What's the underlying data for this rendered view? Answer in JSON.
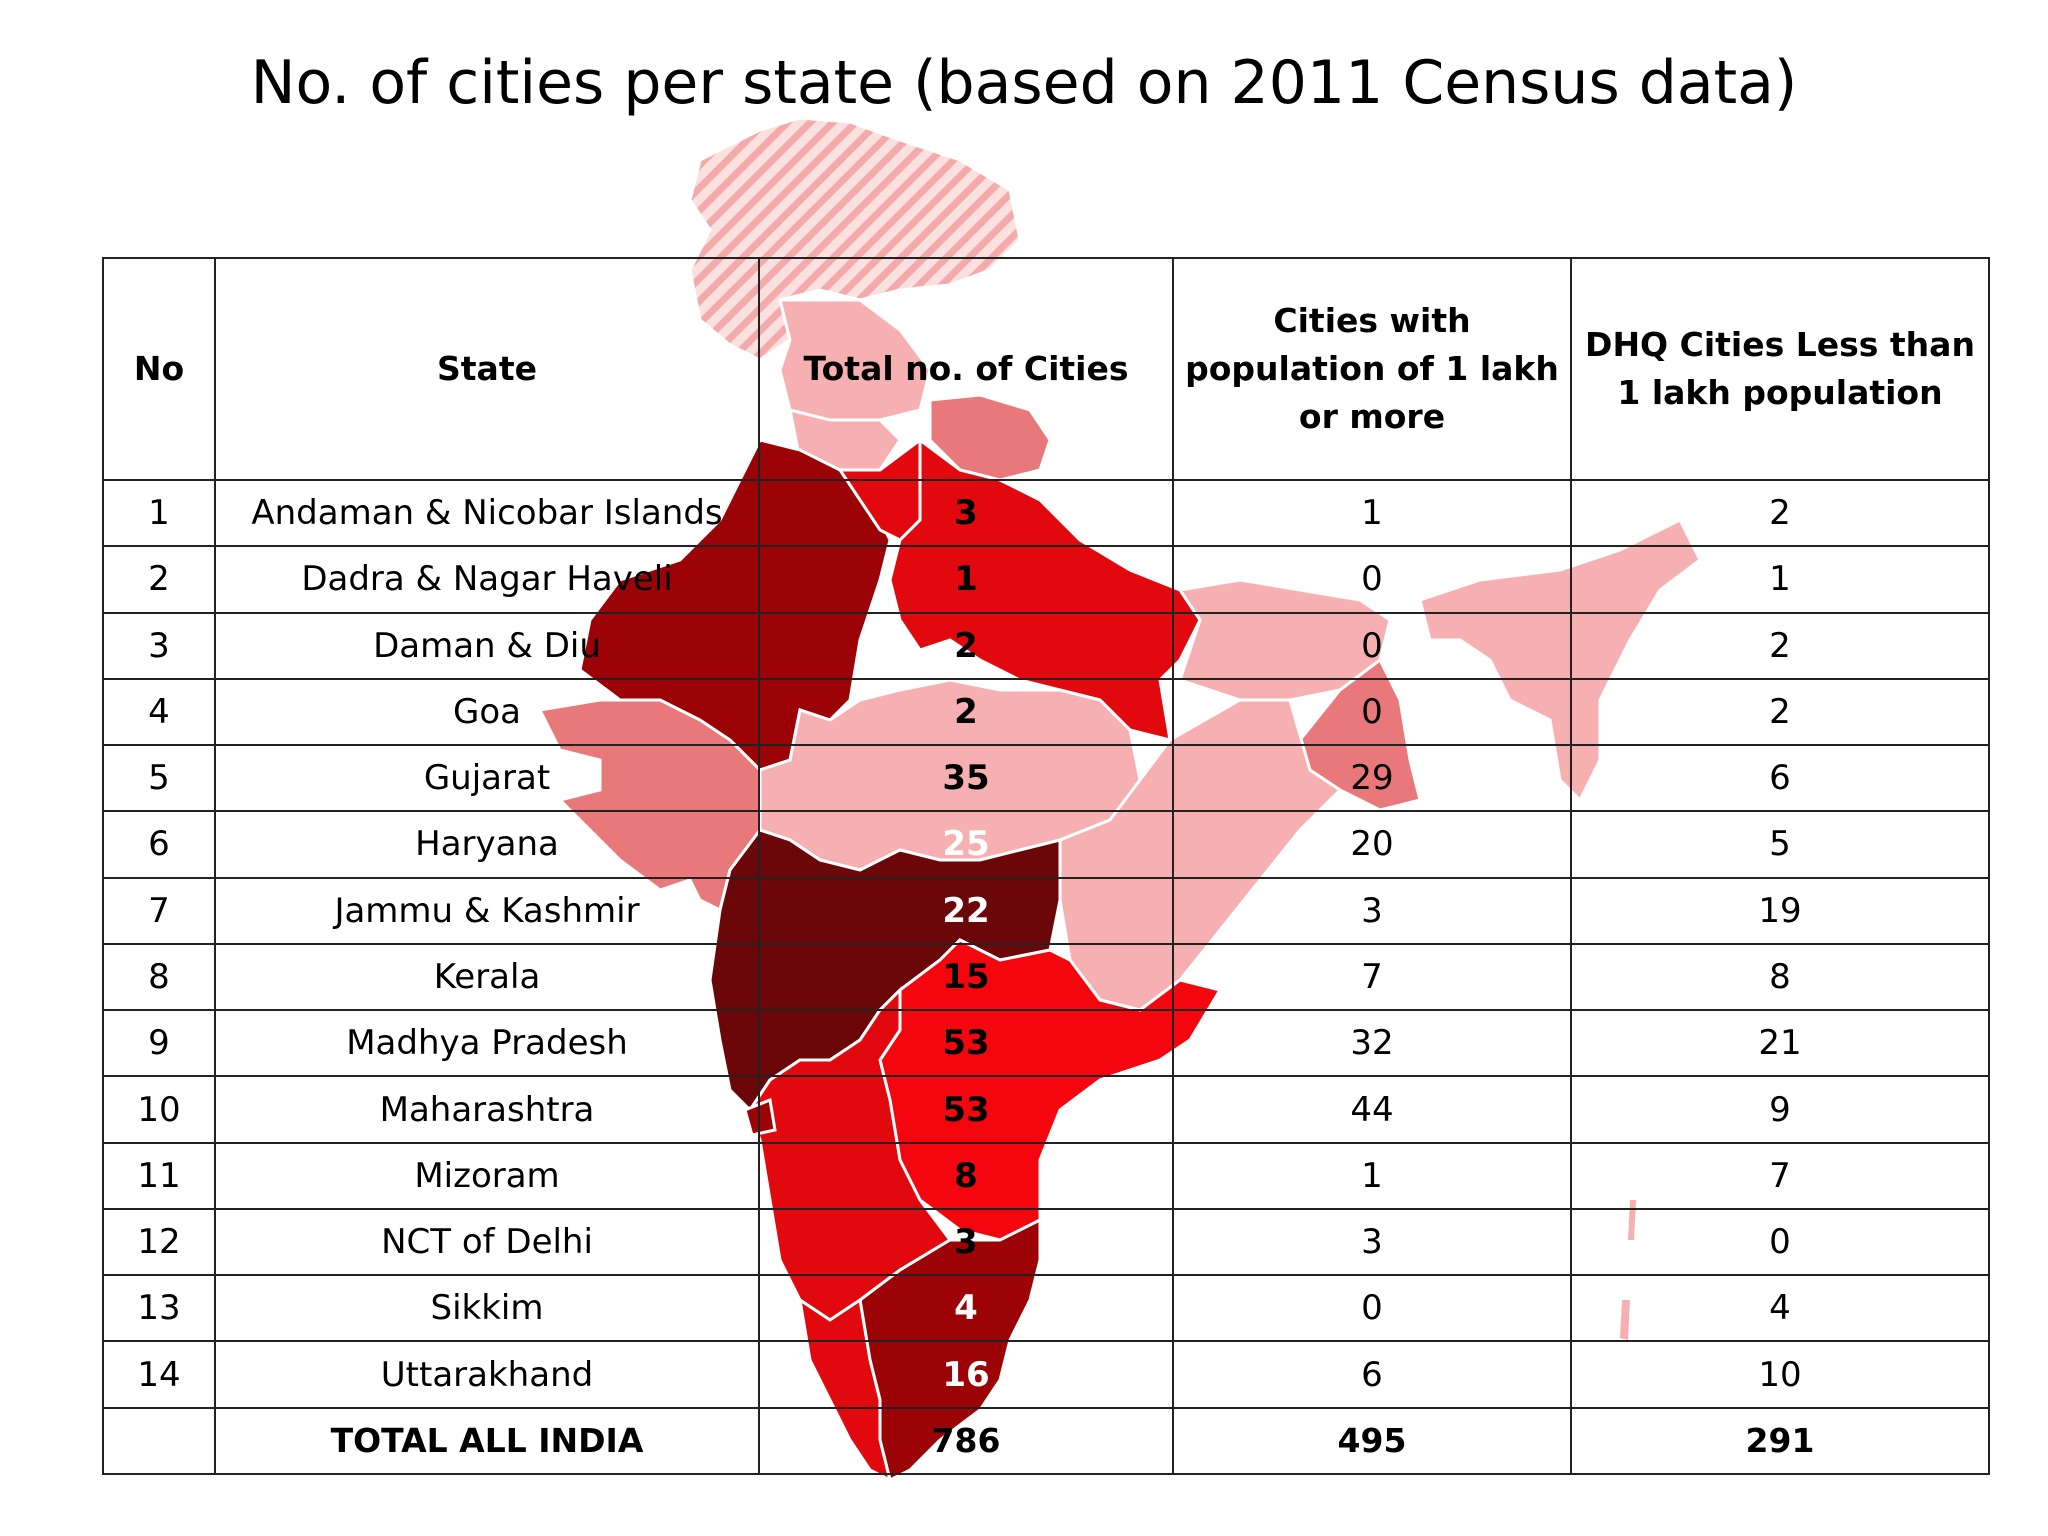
{
  "title": "No. of cities per state (based on 2011 Census data)",
  "colors": {
    "darkest": "#6b0609",
    "dark": "#9c0307",
    "red": "#e1080e",
    "bright": "#f5060f",
    "medium": "#e8787a",
    "light": "#f7b0b2",
    "hatched": "#f7c2c2"
  },
  "table": {
    "headers": [
      "No",
      "State",
      "Total no. of Cities",
      "Cities with population of 1 lakh or more",
      "DHQ Cities Less than 1 lakh population"
    ],
    "rows": [
      {
        "no": "1",
        "state": "Andaman & Nicobar Islands",
        "total": "3",
        "lakh": "1",
        "dhq": "2"
      },
      {
        "no": "2",
        "state": "Dadra & Nagar Haveli",
        "total": "1",
        "lakh": "0",
        "dhq": "1"
      },
      {
        "no": "3",
        "state": "Daman & Diu",
        "total": "2",
        "lakh": "0",
        "dhq": "2"
      },
      {
        "no": "4",
        "state": "Goa",
        "total": "2",
        "lakh": "0",
        "dhq": "2"
      },
      {
        "no": "5",
        "state": "Gujarat",
        "total": "35",
        "lakh": "29",
        "dhq": "6"
      },
      {
        "no": "6",
        "state": "Haryana",
        "total": "25",
        "lakh": "20",
        "dhq": "5"
      },
      {
        "no": "7",
        "state": "Jammu & Kashmir",
        "total": "22",
        "lakh": "3",
        "dhq": "19"
      },
      {
        "no": "8",
        "state": "Kerala",
        "total": "15",
        "lakh": "7",
        "dhq": "8"
      },
      {
        "no": "9",
        "state": "Madhya Pradesh",
        "total": "53",
        "lakh": "32",
        "dhq": "21"
      },
      {
        "no": "10",
        "state": "Maharashtra",
        "total": "53",
        "lakh": "44",
        "dhq": "9"
      },
      {
        "no": "11",
        "state": "Mizoram",
        "total": "8",
        "lakh": "1",
        "dhq": "7"
      },
      {
        "no": "12",
        "state": "NCT of Delhi",
        "total": "3",
        "lakh": "3",
        "dhq": "0"
      },
      {
        "no": "13",
        "state": "Sikkim",
        "total": "4",
        "lakh": "0",
        "dhq": "4"
      },
      {
        "no": "14",
        "state": "Uttarakhand",
        "total": "16",
        "lakh": "6",
        "dhq": "10"
      }
    ],
    "total": {
      "no": "",
      "state": "TOTAL ALL INDIA",
      "total": "786",
      "lakh": "495",
      "dhq": "291"
    }
  }
}
